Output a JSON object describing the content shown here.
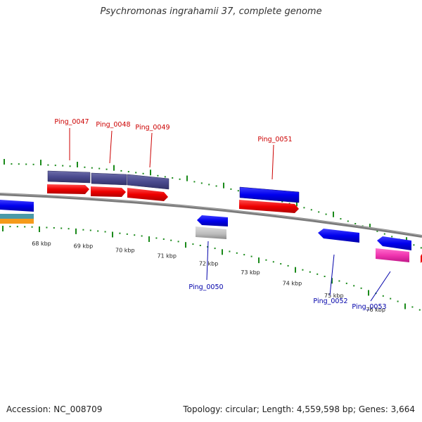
{
  "title": "Psychromonas ingrahamii 37, complete genome",
  "footer": {
    "accession": "Accession: NC_008709",
    "summary": "Topology: circular; Length: 4,559,598 bp; Genes: 3,664"
  },
  "scale_labels": [
    "68 kbp",
    "69 kbp",
    "70 kbp",
    "71 kbp",
    "72 kbp",
    "73 kbp",
    "74 kbp",
    "75 kbp",
    "76 kbp"
  ],
  "genes_forward": [
    {
      "label": "Ping_0047",
      "color": "#cc0000"
    },
    {
      "label": "Ping_0048",
      "color": "#cc0000"
    },
    {
      "label": "Ping_0049",
      "color": "#cc0000"
    },
    {
      "label": "Ping_0051",
      "color": "#cc0000"
    }
  ],
  "genes_reverse": [
    {
      "label": "Ping_0050",
      "color": "#0000aa"
    },
    {
      "label": "Ping_0052",
      "color": "#0000aa"
    },
    {
      "label": "Ping_0053",
      "color": "#0000aa"
    }
  ],
  "colors": {
    "backbone": "#7a7a7a",
    "tick": "#1a8a1a",
    "cds_forward": "#ee0000",
    "cds_reverse": "#0000ee",
    "gene_bar": "#4a4a8e",
    "rna": "#f035b0",
    "pseudo": "#bbbbbb",
    "orange": "#f59a1b",
    "teal": "#4a9aa8"
  }
}
